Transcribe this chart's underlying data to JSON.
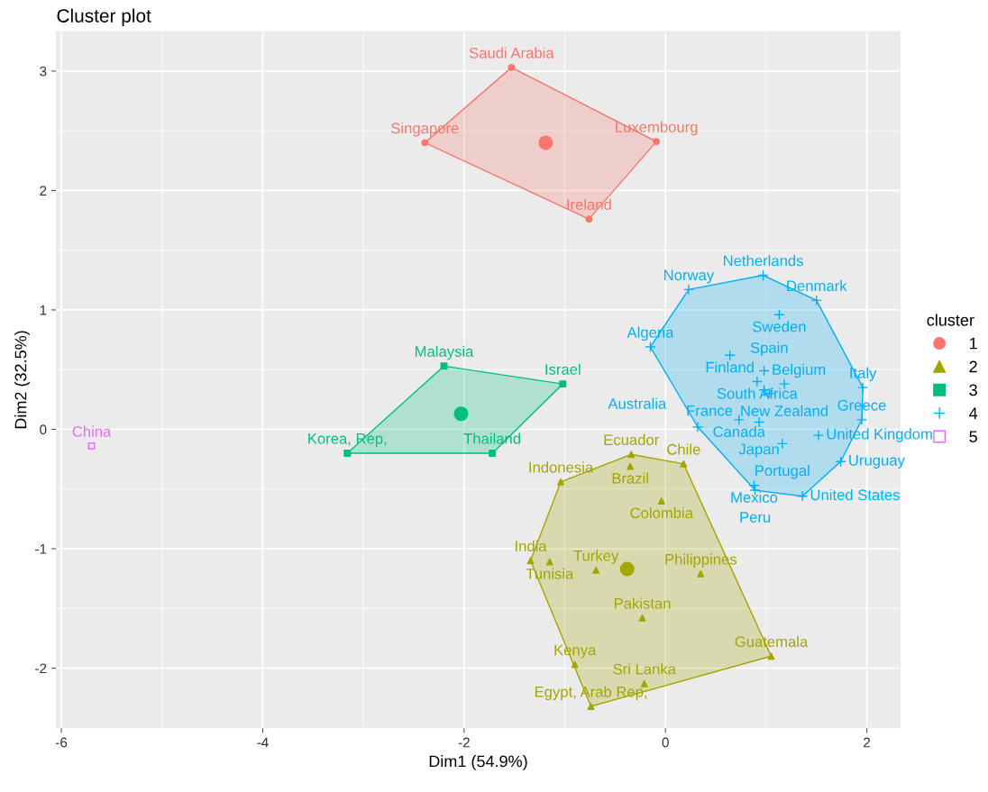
{
  "chart_data": {
    "type": "scatter",
    "title": "Cluster plot",
    "xlabel": "Dim1 (54.9%)",
    "ylabel": "Dim2 (32.5%)",
    "legend_title": "cluster",
    "legend": "right",
    "grid": true,
    "xlim": [
      -6.05,
      2.33
    ],
    "ylim": [
      -2.5,
      3.33
    ],
    "xticks": [
      -6,
      {
        "value": -5,
        "label": null
      },
      -4,
      {
        "value": -3,
        "label": null
      },
      -2,
      {
        "value": -1,
        "label": null
      },
      0,
      {
        "value": 1,
        "label": null
      },
      2
    ],
    "yticks": [
      {
        "value": -2.5,
        "label": null
      },
      -2,
      {
        "value": -1.5,
        "label": null
      },
      -1,
      {
        "value": -0.5,
        "label": null
      },
      0,
      {
        "value": 0.5,
        "label": null
      },
      1,
      {
        "value": 1.5,
        "label": null
      },
      2,
      {
        "value": 2.5,
        "label": null
      },
      3
    ],
    "series": [
      {
        "name": "1",
        "color": "#f8766d",
        "marker": "circle",
        "x": [
          -1.53,
          -2.39,
          -0.09,
          -0.76
        ],
        "values": [
          3.03,
          2.4,
          2.41,
          1.76
        ]
      },
      {
        "name": "2",
        "color": "#a3a500",
        "marker": "triangle",
        "x": [
          -0.34,
          -0.35,
          0.18,
          -1.04,
          -0.04,
          -1.34,
          -1.15,
          -0.69,
          0.35,
          -0.23,
          1.05,
          -0.9,
          -0.21,
          -0.74
        ],
        "values": [
          -0.21,
          -0.31,
          -0.29,
          -0.44,
          -0.6,
          -1.1,
          -1.11,
          -1.18,
          -1.21,
          -1.58,
          -1.9,
          -1.97,
          -2.13,
          -2.32
        ]
      },
      {
        "name": "3",
        "color": "#00bf7d",
        "marker": "square",
        "x": [
          -2.2,
          -1.02,
          -3.16,
          -1.72
        ],
        "values": [
          0.53,
          0.38,
          -0.2,
          -0.2
        ]
      },
      {
        "name": "4",
        "color": "#00b0f6",
        "marker": "cross",
        "x": [
          0.97,
          0.23,
          1.5,
          1.13,
          -0.15,
          0.64,
          0.98,
          0.91,
          1.18,
          0.98,
          1.03,
          0.73,
          0.93,
          0.32,
          1.52,
          1.16,
          1.96,
          1.95,
          1.74,
          0.88,
          0.89,
          1.36
        ],
        "values": [
          1.29,
          1.17,
          1.08,
          0.96,
          0.69,
          0.62,
          0.49,
          0.4,
          0.38,
          0.33,
          0.3,
          0.08,
          0.06,
          0.02,
          -0.05,
          -0.12,
          0.35,
          0.08,
          -0.27,
          -0.47,
          -0.51,
          -0.56
        ]
      },
      {
        "name": "5",
        "color": "#e76bf3",
        "marker": "square",
        "x": [
          -5.7
        ],
        "values": [
          -0.14
        ]
      },
      {
        "marker": "circle",
        "colors": [
          "#f8766d",
          "#a3a500",
          "#00bf7d"
        ],
        "x": [
          -1.19,
          -0.38,
          -2.03
        ],
        "values": [
          2.4,
          -1.17,
          0.13
        ]
      }
    ],
    "annotations": [
      {
        "text": "Saudi Arabia",
        "x": -1.53,
        "y": 3.03
      },
      {
        "text": "Singapore",
        "x": -2.39,
        "y": 2.4
      },
      {
        "text": "Luxembourg",
        "x": -0.09,
        "y": 2.41
      },
      {
        "text": "Ireland",
        "x": -0.76,
        "y": 1.76
      },
      {
        "text": "Ecuador",
        "x": -0.34,
        "y": -0.21
      },
      {
        "text": "Brazil",
        "x": -0.35,
        "y": -0.31
      },
      {
        "text": "Chile",
        "x": 0.18,
        "y": -0.29
      },
      {
        "text": "Indonesia",
        "x": -1.04,
        "y": -0.44
      },
      {
        "text": "Colombia",
        "x": -0.04,
        "y": -0.6
      },
      {
        "text": "India",
        "x": -1.34,
        "y": -1.1
      },
      {
        "text": "Tunisia",
        "x": -1.15,
        "y": -1.11
      },
      {
        "text": "Turkey",
        "x": -0.69,
        "y": -1.18
      },
      {
        "text": "Philippines",
        "x": 0.35,
        "y": -1.21
      },
      {
        "text": "Pakistan",
        "x": -0.23,
        "y": -1.58
      },
      {
        "text": "Guatemala",
        "x": 1.05,
        "y": -1.9
      },
      {
        "text": "Kenya",
        "x": -0.9,
        "y": -1.97
      },
      {
        "text": "Sri Lanka",
        "x": -0.21,
        "y": -2.13
      },
      {
        "text": "Egypt, Arab Rep,",
        "x": -0.74,
        "y": -2.32
      },
      {
        "text": "Malaysia",
        "x": -2.2,
        "y": 0.53
      },
      {
        "text": "Israel",
        "x": -1.02,
        "y": 0.38
      },
      {
        "text": "Korea, Rep,",
        "x": -3.16,
        "y": -0.2
      },
      {
        "text": "Thailand",
        "x": -1.72,
        "y": -0.2
      },
      {
        "text": "Netherlands",
        "x": 0.97,
        "y": 1.29
      },
      {
        "text": "Norway",
        "x": 0.23,
        "y": 1.17
      },
      {
        "text": "Denmark",
        "x": 1.5,
        "y": 1.08
      },
      {
        "text": "Sweden",
        "x": 1.13,
        "y": 0.96
      },
      {
        "text": "Algeria",
        "x": -0.15,
        "y": 0.69
      },
      {
        "text": "Finland",
        "x": 0.64,
        "y": 0.62
      },
      {
        "text": "Belgium",
        "x": 0.98,
        "y": 0.49
      },
      {
        "text": "South Africa",
        "x": 0.91,
        "y": 0.4
      },
      {
        "text": "New Zealand",
        "x": 1.18,
        "y": 0.38
      },
      {
        "text": "France",
        "x": 0.98,
        "y": 0.33
      },
      {
        "text": "Spain",
        "x": 1.03,
        "y": 0.3
      },
      {
        "text": "Canada",
        "x": 0.73,
        "y": 0.08
      },
      {
        "text": "Japan",
        "x": 0.93,
        "y": 0.06
      },
      {
        "text": "Australia",
        "x": 0.32,
        "y": 0.02
      },
      {
        "text": "United Kingdom",
        "x": 1.52,
        "y": -0.05
      },
      {
        "text": "Portugal",
        "x": 1.16,
        "y": -0.12
      },
      {
        "text": "Italy",
        "x": 1.96,
        "y": 0.35
      },
      {
        "text": "Greece",
        "x": 1.95,
        "y": 0.08
      },
      {
        "text": "Uruguay",
        "x": 1.74,
        "y": -0.27
      },
      {
        "text": "Mexico",
        "x": 0.88,
        "y": -0.47
      },
      {
        "text": "Peru",
        "x": 0.89,
        "y": -0.51
      },
      {
        "text": "United States",
        "x": 1.36,
        "y": -0.56
      },
      {
        "text": "China",
        "x": -5.7,
        "y": -0.14
      }
    ]
  }
}
